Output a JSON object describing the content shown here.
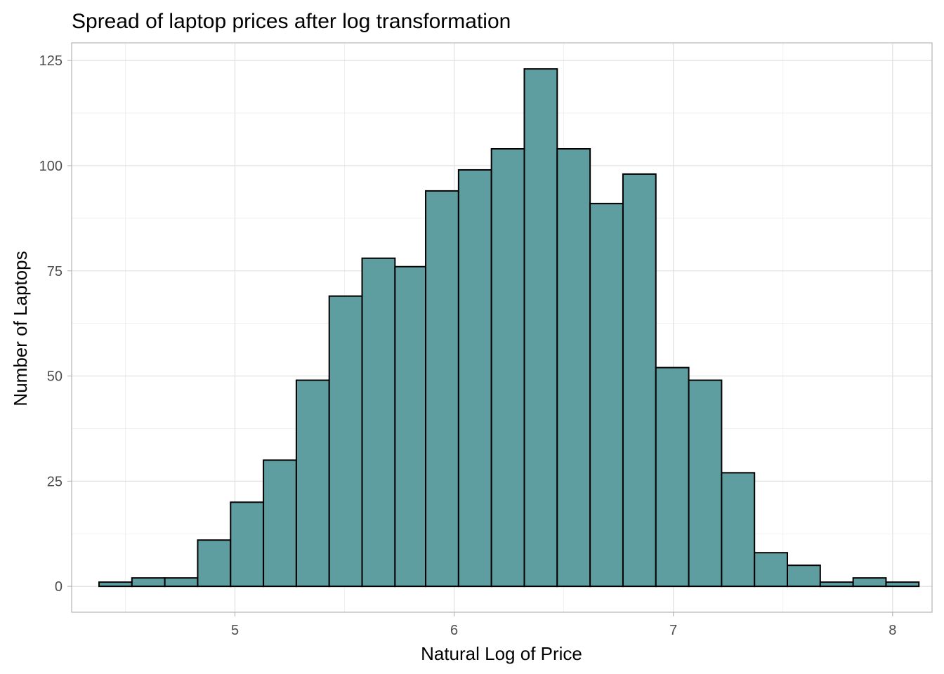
{
  "chart_data": {
    "type": "bar",
    "title": "Spread of laptop prices after log transformation",
    "xlabel": "Natural Log of Price",
    "ylabel": "Number of Laptops",
    "fill_color": "#5F9EA0",
    "border_color": "#000000",
    "grid": true,
    "xlim": [
      4.255,
      8.18
    ],
    "ylim": [
      -6.15,
      129.2
    ],
    "x_ticks": [
      5,
      6,
      7,
      8
    ],
    "y_ticks": [
      0,
      25,
      50,
      75,
      100,
      125
    ],
    "bins": [
      {
        "x0": 4.38,
        "x1": 4.53,
        "count": 1
      },
      {
        "x0": 4.53,
        "x1": 4.68,
        "count": 2
      },
      {
        "x0": 4.68,
        "x1": 4.83,
        "count": 2
      },
      {
        "x0": 4.83,
        "x1": 4.98,
        "count": 11
      },
      {
        "x0": 4.98,
        "x1": 5.13,
        "count": 20
      },
      {
        "x0": 5.13,
        "x1": 5.28,
        "count": 30
      },
      {
        "x0": 5.28,
        "x1": 5.43,
        "count": 49
      },
      {
        "x0": 5.43,
        "x1": 5.58,
        "count": 69
      },
      {
        "x0": 5.58,
        "x1": 5.73,
        "count": 78
      },
      {
        "x0": 5.73,
        "x1": 5.87,
        "count": 76
      },
      {
        "x0": 5.87,
        "x1": 6.02,
        "count": 94
      },
      {
        "x0": 6.02,
        "x1": 6.17,
        "count": 99
      },
      {
        "x0": 6.17,
        "x1": 6.32,
        "count": 104
      },
      {
        "x0": 6.32,
        "x1": 6.47,
        "count": 123
      },
      {
        "x0": 6.47,
        "x1": 6.62,
        "count": 104
      },
      {
        "x0": 6.62,
        "x1": 6.77,
        "count": 91
      },
      {
        "x0": 6.77,
        "x1": 6.92,
        "count": 98
      },
      {
        "x0": 6.92,
        "x1": 7.07,
        "count": 52
      },
      {
        "x0": 7.07,
        "x1": 7.22,
        "count": 49
      },
      {
        "x0": 7.22,
        "x1": 7.37,
        "count": 27
      },
      {
        "x0": 7.37,
        "x1": 7.52,
        "count": 8
      },
      {
        "x0": 7.52,
        "x1": 7.67,
        "count": 5
      },
      {
        "x0": 7.67,
        "x1": 7.82,
        "count": 1
      },
      {
        "x0": 7.82,
        "x1": 7.97,
        "count": 2
      },
      {
        "x0": 7.97,
        "x1": 8.12,
        "count": 1
      }
    ]
  }
}
